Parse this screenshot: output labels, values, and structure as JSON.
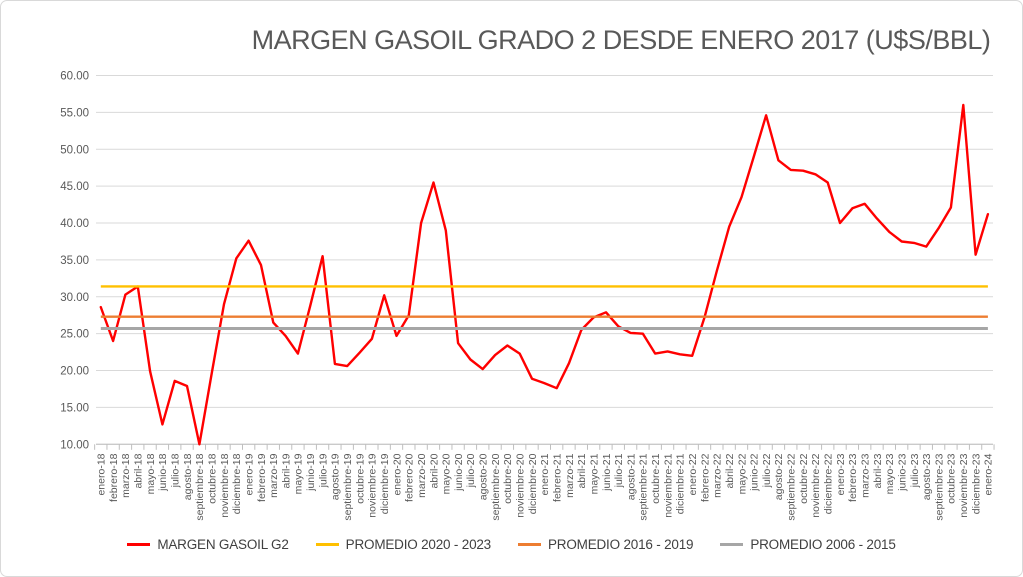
{
  "title": "MARGEN GASOIL GRADO 2 DESDE ENERO 2017 (U$S/BBL)",
  "legend": {
    "items": [
      {
        "label": "MARGEN GASOIL G2",
        "color": "#FF0000"
      },
      {
        "label": "PROMEDIO 2020 - 2023",
        "color": "#FFC000"
      },
      {
        "label": "PROMEDIO 2016 - 2019",
        "color": "#ED7D31"
      },
      {
        "label": "PROMEDIO 2006 - 2015",
        "color": "#A6A6A6"
      }
    ]
  },
  "chart_data": {
    "type": "line",
    "title": "MARGEN GASOIL GRADO 2 DESDE ENERO 2017 (U$S/BBL)",
    "grid": true,
    "legend_position": "bottom",
    "y_axis": {
      "min": 10,
      "max": 60,
      "step": 5,
      "tick_labels": [
        "60.00",
        "55.00",
        "50.00",
        "45.00",
        "40.00",
        "35.00",
        "30.00",
        "25.00",
        "20.00",
        "15.00",
        "10.00"
      ]
    },
    "categories": [
      "enero-18",
      "febrero-18",
      "marzo-18",
      "abril-18",
      "mayo-18",
      "junio-18",
      "julio-18",
      "agosto-18",
      "septiembre-18",
      "octubre-18",
      "noviembre-18",
      "diciembre-18",
      "enero-19",
      "febrero-19",
      "marzo-19",
      "abril-19",
      "mayo-19",
      "junio-19",
      "julio-19",
      "agosto-19",
      "septiembre-19",
      "octubre-19",
      "noviembre-19",
      "diciembre-19",
      "enero-20",
      "febrero-20",
      "marzo-20",
      "abril-20",
      "mayo-20",
      "junio-20",
      "julio-20",
      "agosto-20",
      "septiembre-20",
      "octubre-20",
      "noviembre-20",
      "diciembre-20",
      "enero-21",
      "febrero-21",
      "marzo-21",
      "abril-21",
      "mayo-21",
      "junio-21",
      "julio-21",
      "agosto-21",
      "septiembre-21",
      "octubre-21",
      "noviembre-21",
      "diciembre-21",
      "enero-22",
      "febrero-22",
      "marzo-22",
      "abril-22",
      "mayo-22",
      "junio-22",
      "julio-22",
      "agosto-22",
      "septiembre-22",
      "octubre-22",
      "noviembre-22",
      "diciembre-22",
      "enero-23",
      "febrero-23",
      "marzo-23",
      "abril-23",
      "mayo-23",
      "junio-23",
      "julio-23",
      "agosto-23",
      "septiembre-23",
      "octubre-23",
      "noviembre-23",
      "diciembre-23",
      "enero-24"
    ],
    "series": [
      {
        "name": "MARGEN GASOIL G2",
        "kind": "line",
        "color": "#FF0000",
        "values": [
          28.6,
          24.0,
          30.3,
          31.4,
          19.9,
          12.7,
          18.6,
          17.9,
          10.0,
          19.6,
          29.0,
          35.2,
          37.6,
          34.3,
          26.5,
          24.7,
          22.3,
          28.8,
          35.5,
          20.9,
          20.6,
          22.4,
          24.3,
          30.2,
          24.7,
          27.5,
          40.0,
          45.5,
          39.0,
          23.7,
          21.5,
          20.2,
          22.1,
          23.4,
          22.3,
          18.9,
          18.3,
          17.6,
          21.0,
          25.5,
          27.2,
          27.9,
          26.0,
          25.1,
          25.0,
          22.3,
          22.6,
          22.2,
          22.0,
          27.2,
          33.5,
          39.5,
          43.5,
          49.0,
          54.6,
          48.5,
          47.2,
          47.1,
          46.6,
          45.5,
          40.0,
          42.0,
          42.6,
          40.6,
          38.8,
          37.5,
          37.3,
          36.8,
          39.3,
          42.1,
          56.0,
          35.7,
          41.2
        ]
      },
      {
        "name": "PROMEDIO 2020 - 2023",
        "kind": "reference",
        "color": "#FFC000",
        "value": 31.4
      },
      {
        "name": "PROMEDIO 2016 - 2019",
        "kind": "reference",
        "color": "#ED7D31",
        "value": 27.3
      },
      {
        "name": "PROMEDIO 2006 - 2015",
        "kind": "reference",
        "color": "#A6A6A6",
        "value": 25.7
      }
    ]
  }
}
